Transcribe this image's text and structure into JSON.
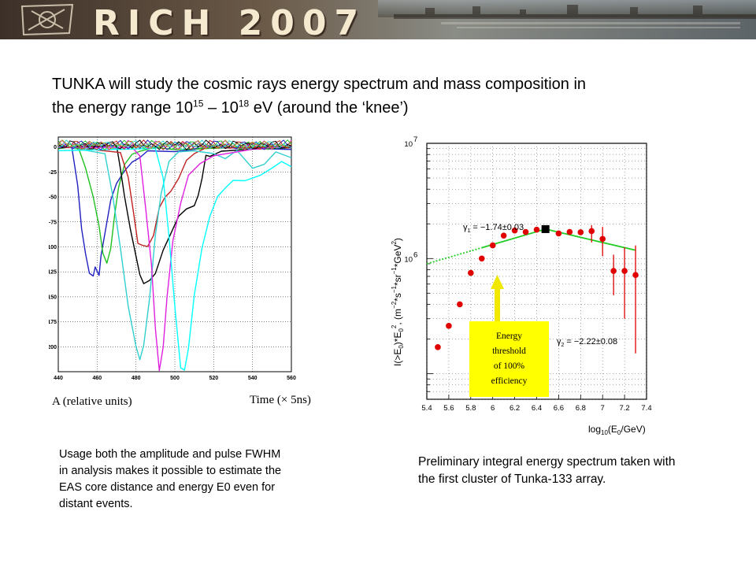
{
  "banner": {
    "title": "RICH 2007"
  },
  "heading": {
    "line1": "TUNKA will study the cosmic rays energy spectrum and mass composition in",
    "line2_pre": "the energy range 10",
    "exp1": "15",
    "dash": " – 10",
    "exp2": "18",
    "line2_post": " eV (around the ‘knee’)"
  },
  "left_caption": "Usage both the amplitude and pulse FWHM in analysis makes it possible to estimate the EAS core distance and energy E0 even for distant events.",
  "right_caption": "Preliminary integral energy spectrum taken with the first cluster of Tunka-133 array.",
  "chart_data": [
    {
      "type": "line",
      "xlabel": "Time (× 5ns)",
      "ylabel": "A (relative units)",
      "xlim": [
        440,
        560
      ],
      "ylim": [
        -225,
        10
      ],
      "x_ticks": [
        "440",
        "460",
        "480",
        "500",
        "520",
        "540",
        "560"
      ],
      "y_ticks": [
        "0",
        "-25",
        "-50",
        "-75",
        "-100",
        "-125",
        "-150",
        "-175",
        "-200"
      ],
      "series": [
        {
          "color": "#2020c0",
          "points": [
            [
              440,
              0
            ],
            [
              447,
              0
            ],
            [
              450,
              -40
            ],
            [
              452,
              -80
            ],
            [
              454,
              -108
            ],
            [
              456,
              -125
            ],
            [
              458,
              -130
            ],
            [
              459,
              -120
            ],
            [
              461,
              -128
            ],
            [
              462,
              -110
            ],
            [
              464,
              -85
            ],
            [
              467,
              -55
            ],
            [
              470,
              -35
            ],
            [
              474,
              -25
            ],
            [
              478,
              -15
            ],
            [
              482,
              -10
            ],
            [
              486,
              -5
            ],
            [
              500,
              -3
            ],
            [
              520,
              -2
            ],
            [
              560,
              -1
            ]
          ]
        },
        {
          "color": "#20c020",
          "points": [
            [
              440,
              0
            ],
            [
              450,
              0
            ],
            [
              454,
              -20
            ],
            [
              458,
              -50
            ],
            [
              461,
              -80
            ],
            [
              463,
              -105
            ],
            [
              465,
              -118
            ],
            [
              467,
              -100
            ],
            [
              469,
              -70
            ],
            [
              471,
              -40
            ],
            [
              474,
              -18
            ],
            [
              478,
              -8
            ],
            [
              482,
              -3
            ],
            [
              490,
              -2
            ],
            [
              500,
              -1
            ],
            [
              560,
              0
            ]
          ]
        },
        {
          "color": "#000000",
          "points": [
            [
              440,
              0
            ],
            [
              470,
              0
            ],
            [
              472,
              -20
            ],
            [
              474,
              -50
            ],
            [
              477,
              -80
            ],
            [
              480,
              -110
            ],
            [
              482,
              -128
            ],
            [
              484,
              -136
            ],
            [
              487,
              -135
            ],
            [
              490,
              -125
            ],
            [
              494,
              -105
            ],
            [
              498,
              -85
            ],
            [
              502,
              -70
            ],
            [
              506,
              -62
            ],
            [
              510,
              -58
            ],
            [
              512,
              -50
            ],
            [
              514,
              -30
            ],
            [
              516,
              -10
            ],
            [
              518,
              -8
            ],
            [
              524,
              -5
            ],
            [
              540,
              -2
            ],
            [
              560,
              0
            ]
          ]
        },
        {
          "color": "#c02020",
          "points": [
            [
              440,
              0
            ],
            [
              472,
              -5
            ],
            [
              476,
              -30
            ],
            [
              479,
              -70
            ],
            [
              481,
              -95
            ],
            [
              483,
              -100
            ],
            [
              486,
              -98
            ],
            [
              489,
              -90
            ],
            [
              492,
              -60
            ],
            [
              495,
              -50
            ],
            [
              498,
              -45
            ],
            [
              502,
              -30
            ],
            [
              506,
              -15
            ],
            [
              510,
              -5
            ],
            [
              516,
              -2
            ],
            [
              540,
              0
            ],
            [
              560,
              0
            ]
          ]
        },
        {
          "color": "#30d0d0",
          "points": [
            [
              440,
              0
            ],
            [
              464,
              -5
            ],
            [
              468,
              -50
            ],
            [
              472,
              -100
            ],
            [
              476,
              -160
            ],
            [
              480,
              -200
            ],
            [
              482,
              -212
            ],
            [
              484,
              -200
            ],
            [
              487,
              -150
            ],
            [
              490,
              -90
            ],
            [
              493,
              -45
            ],
            [
              497,
              -15
            ],
            [
              502,
              -5
            ],
            [
              510,
              -3
            ],
            [
              520,
              -8
            ],
            [
              526,
              -10
            ],
            [
              532,
              -5
            ],
            [
              540,
              -20
            ],
            [
              546,
              -18
            ],
            [
              552,
              -5
            ],
            [
              560,
              -10
            ]
          ]
        },
        {
          "color": "#e020e0",
          "points": [
            [
              440,
              0
            ],
            [
              478,
              0
            ],
            [
              482,
              -10
            ],
            [
              485,
              -60
            ],
            [
              488,
              -120
            ],
            [
              490,
              -180
            ],
            [
              492,
              -225
            ],
            [
              494,
              -200
            ],
            [
              496,
              -150
            ],
            [
              499,
              -95
            ],
            [
              503,
              -55
            ],
            [
              507,
              -30
            ],
            [
              513,
              -15
            ],
            [
              520,
              -10
            ],
            [
              530,
              -5
            ],
            [
              540,
              -2
            ],
            [
              560,
              0
            ]
          ]
        },
        {
          "color": "#00ffff",
          "points": [
            [
              440,
              -2
            ],
            [
              490,
              -3
            ],
            [
              494,
              -30
            ],
            [
              497,
              -90
            ],
            [
              500,
              -160
            ],
            [
              503,
              -220
            ],
            [
              505,
              -225
            ],
            [
              507,
              -200
            ],
            [
              510,
              -150
            ],
            [
              514,
              -100
            ],
            [
              518,
              -70
            ],
            [
              522,
              -50
            ],
            [
              526,
              -40
            ],
            [
              530,
              -35
            ],
            [
              536,
              -32
            ],
            [
              544,
              -30
            ],
            [
              550,
              -20
            ],
            [
              555,
              -15
            ],
            [
              560,
              -20
            ]
          ]
        }
      ]
    },
    {
      "type": "scatter",
      "xlabel": "log10(E0/GeV)",
      "ylabel": "I(>E0)*E0^2, (m^-2*s^-1*sr^-1*GeV^2)",
      "xlim": [
        5.4,
        7.4
      ],
      "ylim": [
        60000,
        10000000
      ],
      "log_y": true,
      "x_ticks": [
        "5.4",
        "5.6",
        "5.8",
        "6",
        "6.2",
        "6.4",
        "6.6",
        "6.8",
        "7",
        "7.2",
        "7.4"
      ],
      "y_ticks": [
        {
          "base": "10",
          "exp": "7",
          "value": 10000000
        },
        {
          "base": "10",
          "exp": "6",
          "value": 1000000
        }
      ],
      "points": [
        {
          "x": 5.5,
          "y": 170000
        },
        {
          "x": 5.6,
          "y": 260000
        },
        {
          "x": 5.7,
          "y": 400000
        },
        {
          "x": 5.8,
          "y": 750000
        },
        {
          "x": 5.9,
          "y": 1000000
        },
        {
          "x": 6.0,
          "y": 1300000
        },
        {
          "x": 6.1,
          "y": 1580000
        },
        {
          "x": 6.2,
          "y": 1750000
        },
        {
          "x": 6.3,
          "y": 1700000
        },
        {
          "x": 6.4,
          "y": 1780000
        },
        {
          "x": 6.6,
          "y": 1650000
        },
        {
          "x": 6.7,
          "y": 1700000
        },
        {
          "x": 6.8,
          "y": 1690000
        },
        {
          "x": 6.9,
          "y": 1730000,
          "err": [
            1380000,
            1950000
          ]
        },
        {
          "x": 7.0,
          "y": 1480000,
          "err": [
            1050000,
            1880000
          ]
        },
        {
          "x": 7.1,
          "y": 780000,
          "err": [
            480000,
            1080000
          ]
        },
        {
          "x": 7.2,
          "y": 780000,
          "err": [
            300000,
            1250000
          ]
        },
        {
          "x": 7.3,
          "y": 720000,
          "err": [
            150000,
            1300000
          ]
        }
      ],
      "knee_marker": {
        "x": 6.48,
        "y": 1800000
      },
      "fit_lines": [
        {
          "name": "γ1 = −1.74±0.03",
          "from": [
            5.4,
            900000
          ],
          "to": [
            6.48,
            1800000
          ],
          "dotted_until": 5.9
        },
        {
          "name": "γ2 = −2.22±0.08",
          "from": [
            6.48,
            1800000
          ],
          "to": [
            7.3,
            1180000
          ]
        }
      ],
      "annotations": {
        "gamma1_label": "γ",
        "gamma1_sub": "1",
        "gamma1_value": "= −1.74±0.03",
        "gamma2_label": "γ",
        "gamma2_sub": "2",
        "gamma2_value": "= −2.22±0.08",
        "threshold_lines": [
          "Energy",
          "threshold",
          "of 100%",
          "efficiency"
        ]
      },
      "colors": {
        "points": "#e00000",
        "fit": "#22cc22",
        "threshold_box": "#ffff00"
      }
    }
  ]
}
